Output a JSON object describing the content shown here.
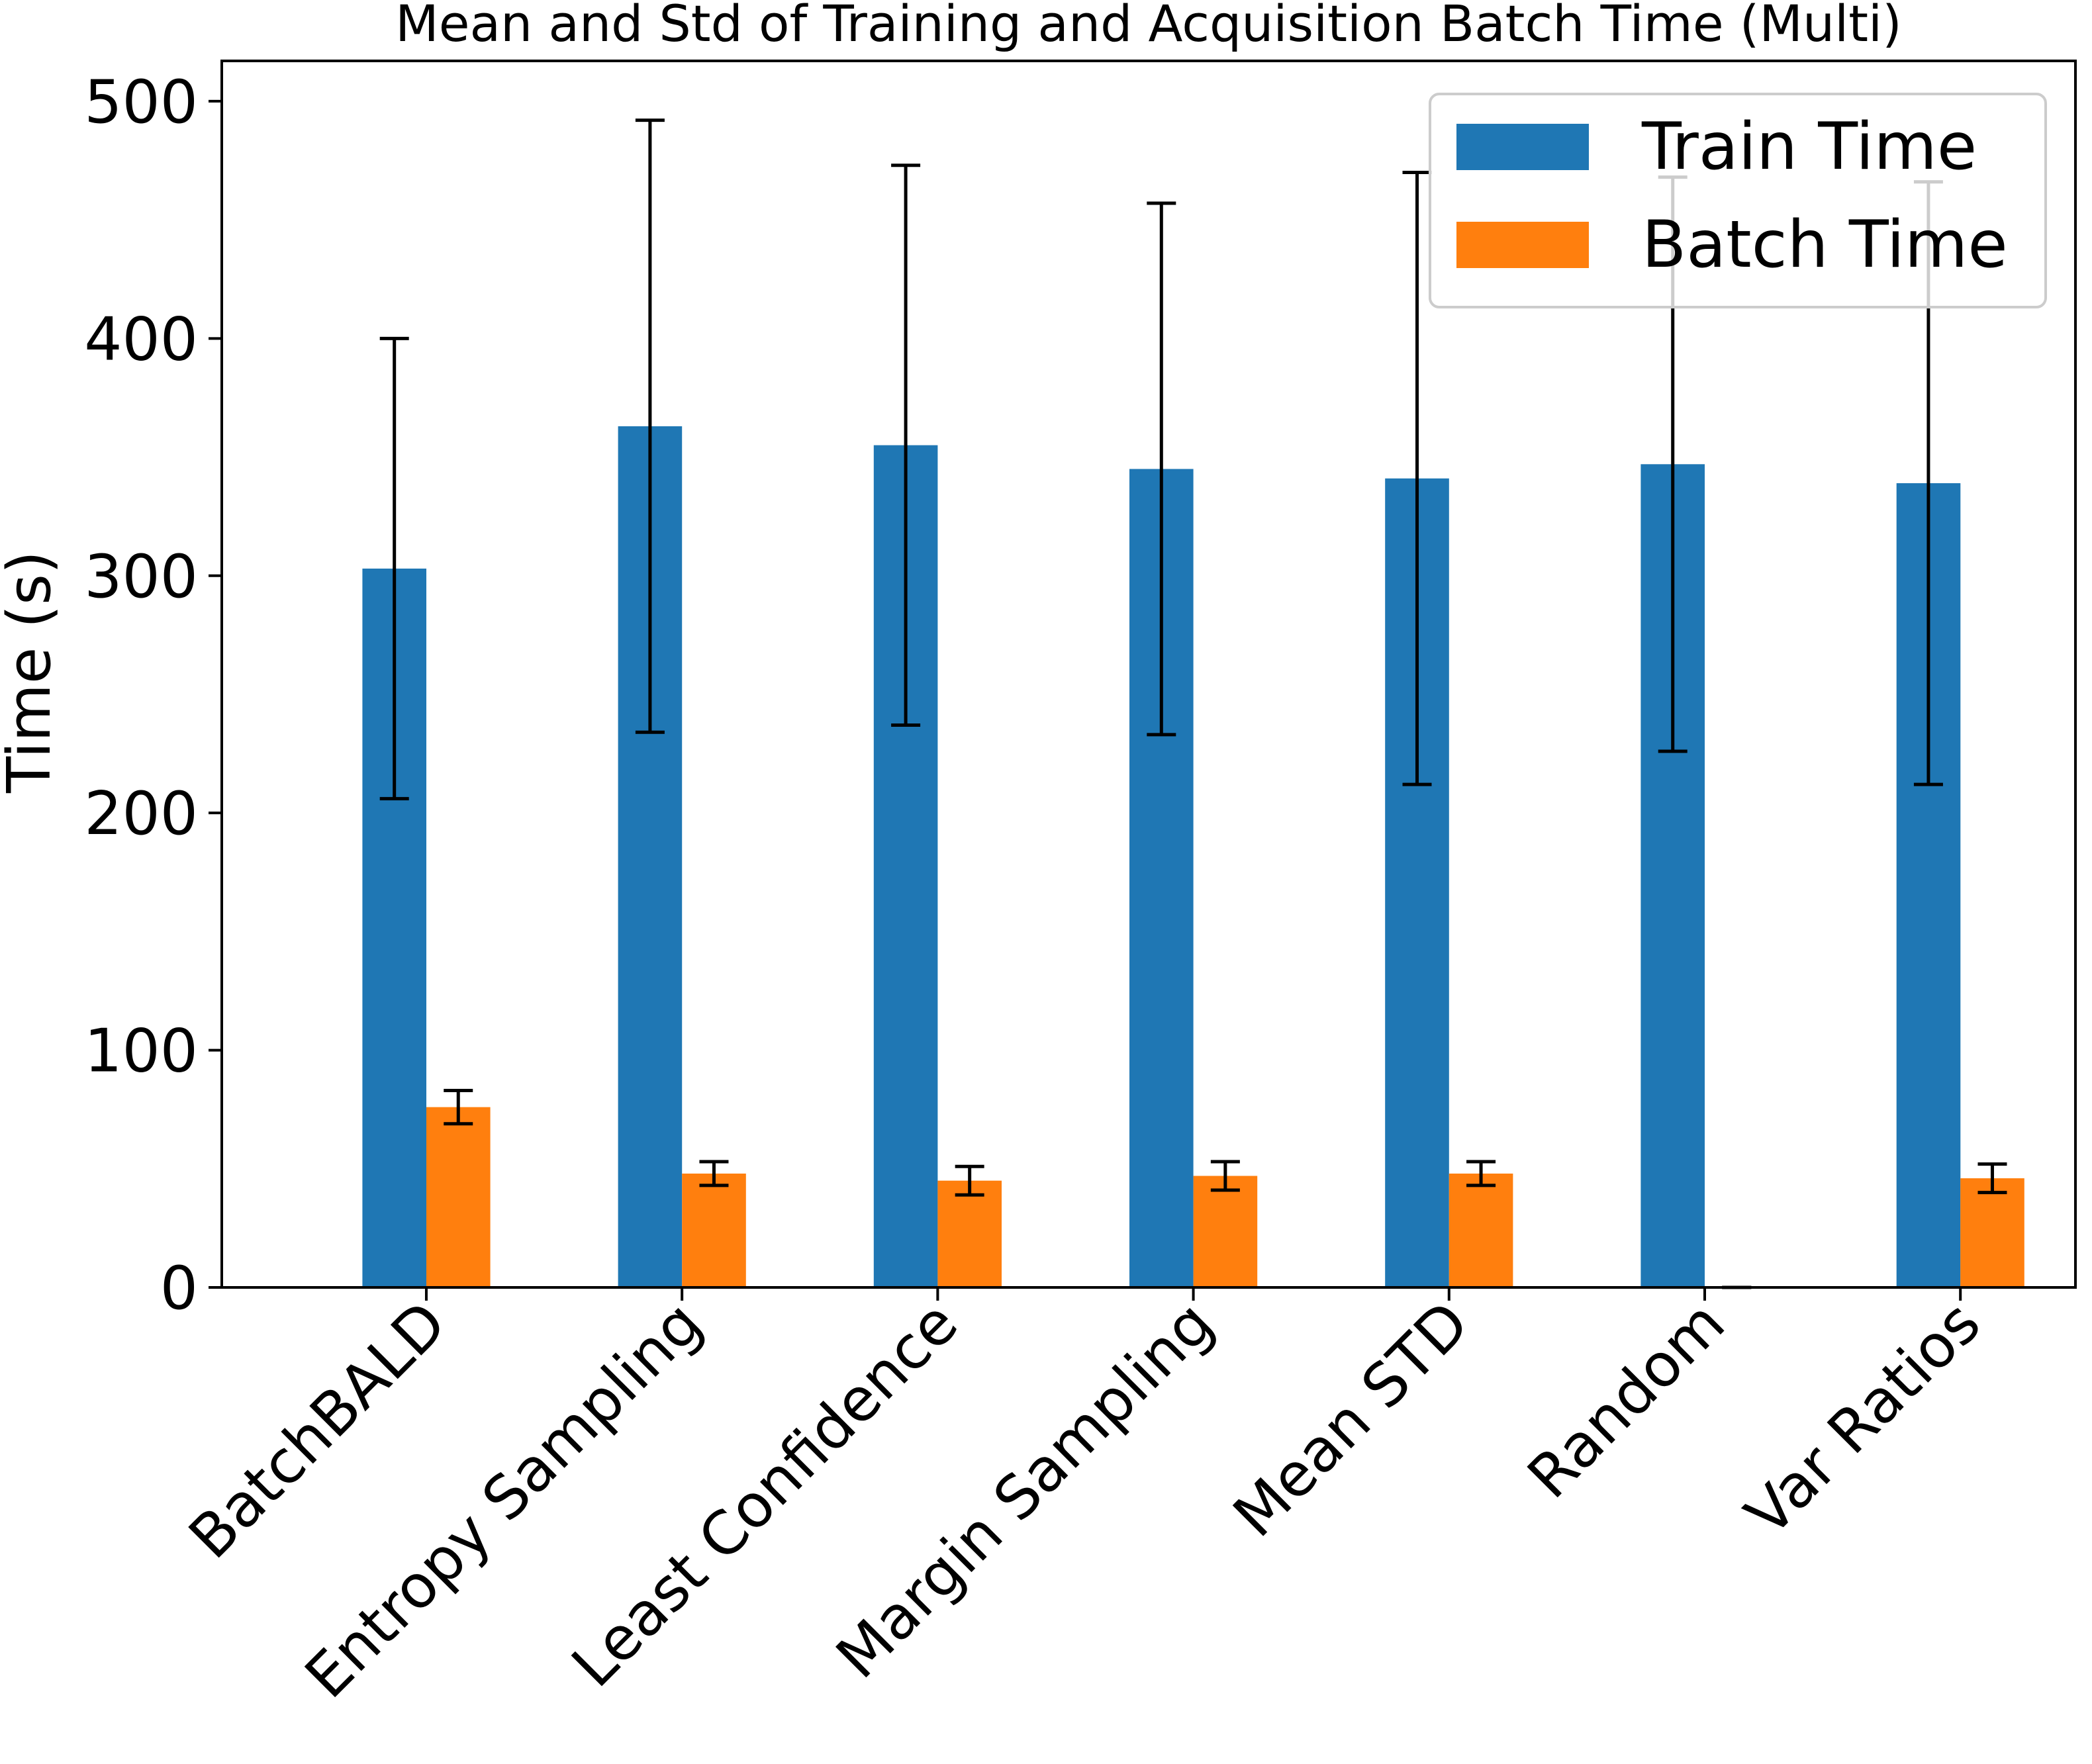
{
  "chart_data": {
    "type": "bar",
    "title": "Mean and Std of Training and Acquisition Batch Time (Multi)",
    "xlabel": "",
    "ylabel": "Time (s)",
    "ylim": [
      0,
      517
    ],
    "yticks": [
      0,
      100,
      200,
      300,
      400,
      500
    ],
    "categories": [
      "BatchBALD",
      "Entropy Sampling",
      "Least Confidence",
      "Margin Sampling",
      "Mean STD",
      "Random",
      "Var Ratios"
    ],
    "series": [
      {
        "name": "Train Time",
        "color": "#1f77b4",
        "values": [
          303,
          363,
          355,
          345,
          341,
          347,
          339
        ],
        "errors": [
          97,
          129,
          118,
          112,
          129,
          121,
          127
        ]
      },
      {
        "name": "Batch Time",
        "color": "#ff7f0e",
        "values": [
          76,
          48,
          45,
          47,
          48,
          0,
          46
        ],
        "errors": [
          7,
          5,
          6,
          6,
          5,
          0,
          6
        ]
      }
    ],
    "legend_position": "top-right",
    "grid": false
  }
}
